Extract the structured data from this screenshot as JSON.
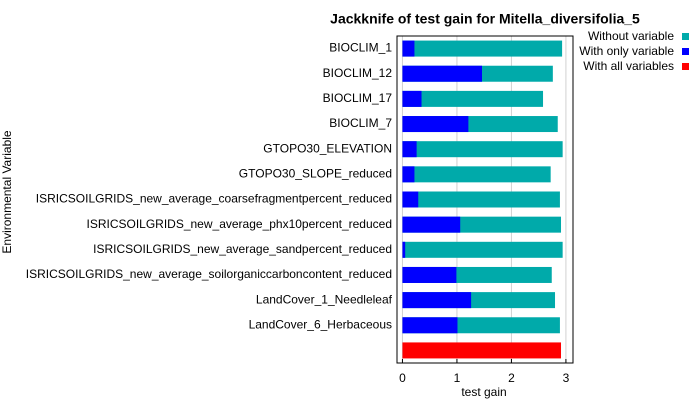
{
  "chart_data": {
    "type": "bar",
    "orientation": "horizontal",
    "title": "Jackknife of test gain for Mitella_diversifolia_5",
    "xlabel": "test gain",
    "ylabel": "Environmental Variable",
    "categories": [
      "BIOCLIM_1",
      "BIOCLIM_12",
      "BIOCLIM_17",
      "BIOCLIM_7",
      "GTOPO30_ELEVATION",
      "GTOPO30_SLOPE_reduced",
      "ISRICSOILGRIDS_new_average_coarsefragmentpercent_reduced",
      "ISRICSOILGRIDS_new_average_phx10percent_reduced",
      "ISRICSOILGRIDS_new_average_sandpercent_reduced",
      "ISRICSOILGRIDS_new_average_soilorganiccarboncontent_reduced",
      "LandCover_1_Needleleaf",
      "LandCover_6_Herbaceous",
      null
    ],
    "series": [
      {
        "name": "Without variable",
        "color": "#00aaaa",
        "values": [
          2.93,
          2.76,
          2.58,
          2.85,
          2.94,
          2.72,
          2.89,
          2.91,
          2.94,
          2.74,
          2.8,
          2.89,
          null
        ]
      },
      {
        "name": "With only variable",
        "color": "#0000ff",
        "values": [
          0.22,
          1.46,
          0.35,
          1.21,
          0.26,
          0.22,
          0.29,
          1.06,
          0.05,
          0.99,
          1.26,
          1.01,
          null
        ]
      },
      {
        "name": "With all variables",
        "color": "#ff0000",
        "values": [
          null,
          null,
          null,
          null,
          null,
          null,
          null,
          null,
          null,
          null,
          null,
          null,
          2.91
        ]
      }
    ],
    "xlim": [
      -0.1,
      3.13
    ],
    "xticks": [
      0,
      1,
      2,
      3
    ],
    "grid": true,
    "legend": "upper right"
  }
}
